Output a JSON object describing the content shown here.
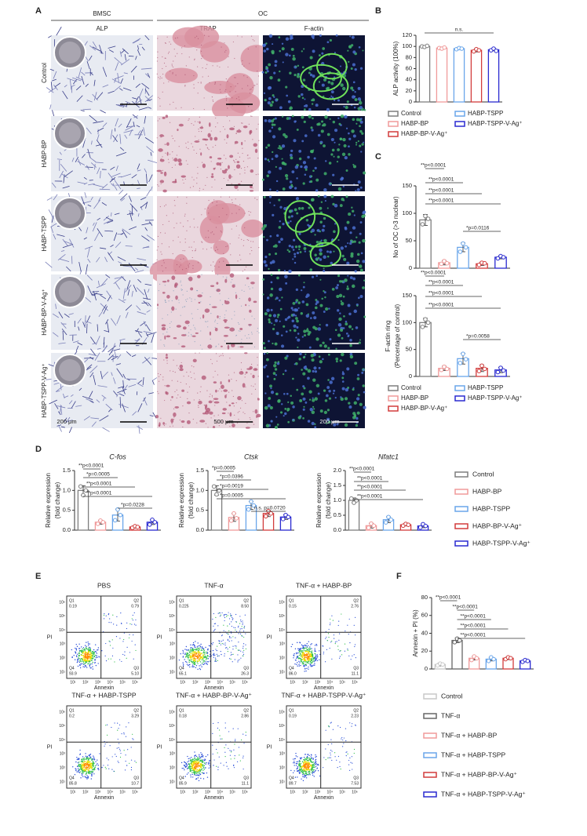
{
  "panels": [
    "A",
    "B",
    "C",
    "D",
    "E",
    "F"
  ],
  "panel_a": {
    "groups": [
      "BMSC",
      "OC"
    ],
    "columns": [
      "ALP",
      "TRAP",
      "F-actin"
    ],
    "rows": [
      "Control",
      "HABP-BP",
      "HABP-TSPP",
      "HABP-BP-V-Ag⁺",
      "HABP-TSPP-V-Ag⁺"
    ],
    "scale_bars": [
      "200 μm",
      "500 μm",
      "200 μm"
    ]
  },
  "chart_data": [
    {
      "type": "bar",
      "ylabel": "ALP activity (100%)",
      "categories": [
        "Control",
        "HABP-BP",
        "HABP-TSPP",
        "HABP-BP-V-Ag⁺",
        "HABP-TSPP-V-Ag⁺"
      ],
      "colors": [
        "#7f7f7f",
        "#f09a9a",
        "#6aa6ea",
        "#d23c3c",
        "#2a2ad0"
      ],
      "values": [
        100,
        97,
        96,
        93,
        94
      ],
      "errors": [
        1.5,
        2,
        2,
        3,
        2
      ],
      "points": [
        [
          100,
          99,
          101
        ],
        [
          97,
          96,
          98
        ],
        [
          95,
          97,
          96
        ],
        [
          91,
          95,
          93
        ],
        [
          93,
          96,
          92
        ]
      ],
      "ylim": [
        0,
        120
      ],
      "yticks": [
        0,
        20,
        40,
        60,
        80,
        100,
        120
      ],
      "annotations": [
        "n.s."
      ]
    },
    {
      "type": "bar",
      "ylabel": "No of OC (>3 nuclear)",
      "colors": [
        "#7f7f7f",
        "#f09a9a",
        "#6aa6ea",
        "#d23c3c",
        "#2a2ad0"
      ],
      "values": [
        88,
        10,
        38,
        8,
        20
      ],
      "errors": [
        10,
        4,
        8,
        3,
        3
      ],
      "points": [
        [
          80,
          95,
          90
        ],
        [
          8,
          13,
          9
        ],
        [
          30,
          45,
          38
        ],
        [
          6,
          10,
          9
        ],
        [
          18,
          22,
          20
        ]
      ],
      "ylim": [
        0,
        150
      ],
      "yticks": [
        0,
        50,
        100,
        150
      ],
      "annotations": [
        "**p<0.0001",
        "**p<0.0001",
        "**p<0.0001",
        "**p<0.0001",
        "*p=0.0116"
      ]
    },
    {
      "type": "bar",
      "ylabel": [
        "F-actin ring",
        "(Percentage of control)"
      ],
      "categories": [
        "Control",
        "HABP-BP",
        "HABP-TSPP",
        "HABP-BP-V-Ag⁺",
        "HABP-TSPP-V-Ag⁺"
      ],
      "colors": [
        "#7f7f7f",
        "#f09a9a",
        "#6aa6ea",
        "#d23c3c",
        "#2a2ad0"
      ],
      "values": [
        100,
        15,
        33,
        15,
        12
      ],
      "errors": [
        8,
        4,
        10,
        6,
        5
      ],
      "points": [
        [
          92,
          106,
          100
        ],
        [
          12,
          18,
          14
        ],
        [
          25,
          42,
          32
        ],
        [
          10,
          20,
          14
        ],
        [
          8,
          16,
          11
        ]
      ],
      "ylim": [
        0,
        150
      ],
      "yticks": [
        0,
        50,
        100,
        150
      ],
      "annotations": [
        "**p<0.0001",
        "**p<0.0001",
        "**p<0.0001",
        "**p<0.0001",
        "*p=0.0058"
      ]
    },
    {
      "type": "bar",
      "title": "C-fos",
      "ylabel": [
        "Relative expression",
        "(fold change)"
      ],
      "colors": [
        "#7f7f7f",
        "#f09a9a",
        "#6aa6ea",
        "#d23c3c",
        "#2a2ad0"
      ],
      "values": [
        1.0,
        0.2,
        0.38,
        0.08,
        0.2
      ],
      "errors": [
        0.12,
        0.05,
        0.15,
        0.03,
        0.06
      ],
      "points": [
        [
          1.1,
          0.88,
          1.0
        ],
        [
          0.16,
          0.24,
          0.2
        ],
        [
          0.25,
          0.52,
          0.38
        ],
        [
          0.06,
          0.1,
          0.08
        ],
        [
          0.14,
          0.26,
          0.2
        ]
      ],
      "ylim": [
        0,
        1.5
      ],
      "yticks": [
        {
          "value": 0,
          "label": "0.0"
        },
        {
          "value": 0.5,
          "label": "0.5"
        },
        {
          "value": 1,
          "label": "1.0"
        },
        {
          "value": 1.5,
          "label": "1.5"
        }
      ],
      "annotations": [
        "**p<0.0001",
        "*p=0.0005",
        "**p<0.0001",
        "**p<0.0001",
        "*p=0.0228"
      ]
    },
    {
      "type": "bar",
      "title": "Ctsk",
      "ylabel": [
        "Relative expression",
        "(fold change)"
      ],
      "colors": [
        "#7f7f7f",
        "#f09a9a",
        "#6aa6ea",
        "#d23c3c",
        "#2a2ad0"
      ],
      "values": [
        1.0,
        0.32,
        0.62,
        0.42,
        0.33
      ],
      "errors": [
        0.12,
        0.1,
        0.1,
        0.08,
        0.06
      ],
      "points": [
        [
          1.1,
          0.9,
          1.0
        ],
        [
          0.24,
          0.42,
          0.3
        ],
        [
          0.52,
          0.72,
          0.62
        ],
        [
          0.35,
          0.48,
          0.42
        ],
        [
          0.28,
          0.38,
          0.33
        ]
      ],
      "ylim": [
        0,
        1.5
      ],
      "yticks": [
        {
          "value": 0,
          "label": "0.0"
        },
        {
          "value": 0.5,
          "label": "0.5"
        },
        {
          "value": 1,
          "label": "1.0"
        },
        {
          "value": 1.5,
          "label": "1.5"
        }
      ],
      "annotations": [
        "*p=0.0005",
        "*p=0.0396",
        "*p=0.0019",
        "*p=0.0005",
        "n.s. p=0.0720"
      ]
    },
    {
      "type": "bar",
      "title": "Nfatc1",
      "ylabel": [
        "Relative expression",
        "(fold change)"
      ],
      "categories": [
        "Control",
        "HABP-BP",
        "HABP-TSPP",
        "HABP-BP-V-Ag⁺",
        "HABP-TSPP-V-Ag⁺"
      ],
      "colors": [
        "#7f7f7f",
        "#f09a9a",
        "#6aa6ea",
        "#d23c3c",
        "#2a2ad0"
      ],
      "values": [
        1.0,
        0.15,
        0.35,
        0.18,
        0.14
      ],
      "errors": [
        0.08,
        0.08,
        0.1,
        0.04,
        0.06
      ],
      "points": [
        [
          1.06,
          0.92,
          1.0
        ],
        [
          0.08,
          0.22,
          0.15
        ],
        [
          0.26,
          0.44,
          0.35
        ],
        [
          0.15,
          0.21,
          0.18
        ],
        [
          0.09,
          0.2,
          0.14
        ]
      ],
      "ylim": [
        0,
        2
      ],
      "yticks": [
        {
          "value": 0,
          "label": "0.0"
        },
        {
          "value": 0.5,
          "label": "0.5"
        },
        {
          "value": 1,
          "label": "1.0"
        },
        {
          "value": 1.5,
          "label": "1.5"
        },
        {
          "value": 2,
          "label": "2.0"
        }
      ],
      "annotations": [
        "**p<0.0001",
        "**p<0.0001",
        "**p<0.0001",
        "**p<0.0001"
      ]
    },
    {
      "type": "bar",
      "ylabel": "Annexin + PI (%)",
      "categories": [
        "Control",
        "TNF-α",
        "TNF-α + HABP-BP",
        "TNF-α + HABP-TSPP",
        "TNF-α + HABP-BP-V-Ag⁺",
        "TNF-α + HABP-TSPP-V-Ag⁺"
      ],
      "colors": [
        "#c8c8c8",
        "#666666",
        "#f09a9a",
        "#6aa6ea",
        "#d23c3c",
        "#2a2ad0"
      ],
      "values": [
        5,
        32,
        12,
        11,
        12,
        9
      ],
      "errors": [
        1.5,
        2.5,
        2,
        2,
        1.5,
        1
      ],
      "points": [
        [
          4,
          6,
          5
        ],
        [
          30,
          34,
          32
        ],
        [
          10,
          14,
          12
        ],
        [
          9,
          13,
          11
        ],
        [
          11,
          13,
          12
        ],
        [
          8,
          10,
          9
        ]
      ],
      "ylim": [
        0,
        80
      ],
      "yticks": [
        0,
        20,
        40,
        60,
        80
      ],
      "annotations": [
        "**p<0.0001",
        "**p<0.0001",
        "**p<0.0001",
        "**p<0.0001",
        "**p<0.0001"
      ]
    }
  ],
  "flow": {
    "x_label": "Annexin",
    "y_label": "PI",
    "xticks": [
      "10¹",
      "10²",
      "10³",
      "10⁴",
      "10⁵",
      "10⁶"
    ],
    "yticks": [
      "10¹",
      "10²",
      "10³",
      "10⁴",
      "10⁵",
      "10⁶"
    ],
    "plots": [
      {
        "title": "PBS",
        "quadrants": [
          {
            "name": "Q1",
            "value": "0.19"
          },
          {
            "name": "Q2",
            "value": "0.79"
          },
          {
            "name": "Q3",
            "value": "5.10"
          },
          {
            "name": "Q4",
            "value": "93.9"
          }
        ]
      },
      {
        "title": "TNF-α",
        "quadrants": [
          {
            "name": "Q1",
            "value": "0.225"
          },
          {
            "name": "Q2",
            "value": "8.50"
          },
          {
            "name": "Q3",
            "value": "26.3"
          },
          {
            "name": "Q4",
            "value": "65.1"
          }
        ]
      },
      {
        "title": "TNF-α + HABP-BP",
        "quadrants": [
          {
            "name": "Q1",
            "value": "0.15"
          },
          {
            "name": "Q2",
            "value": "2.76"
          },
          {
            "name": "Q3",
            "value": "11.1"
          },
          {
            "name": "Q4",
            "value": "86.0"
          }
        ]
      },
      {
        "title": "TNF-α + HABP-TSPP",
        "quadrants": [
          {
            "name": "Q1",
            "value": "0.2"
          },
          {
            "name": "Q2",
            "value": "3.29"
          },
          {
            "name": "Q3",
            "value": "10.7"
          },
          {
            "name": "Q4",
            "value": "85.8"
          }
        ]
      },
      {
        "title": "TNF-α + HABP-BP-V-Ag⁺",
        "quadrants": [
          {
            "name": "Q1",
            "value": "0.18"
          },
          {
            "name": "Q2",
            "value": "2.86"
          },
          {
            "name": "Q3",
            "value": "11.1"
          },
          {
            "name": "Q4",
            "value": "85.9"
          }
        ]
      },
      {
        "title": "TNF-α + HABP-TSPP-V-Ag⁺",
        "quadrants": [
          {
            "name": "Q1",
            "value": "0.19"
          },
          {
            "name": "Q2",
            "value": "2.23"
          },
          {
            "name": "Q3",
            "value": "7.53"
          },
          {
            "name": "Q4",
            "value": "89.7"
          }
        ]
      }
    ]
  }
}
